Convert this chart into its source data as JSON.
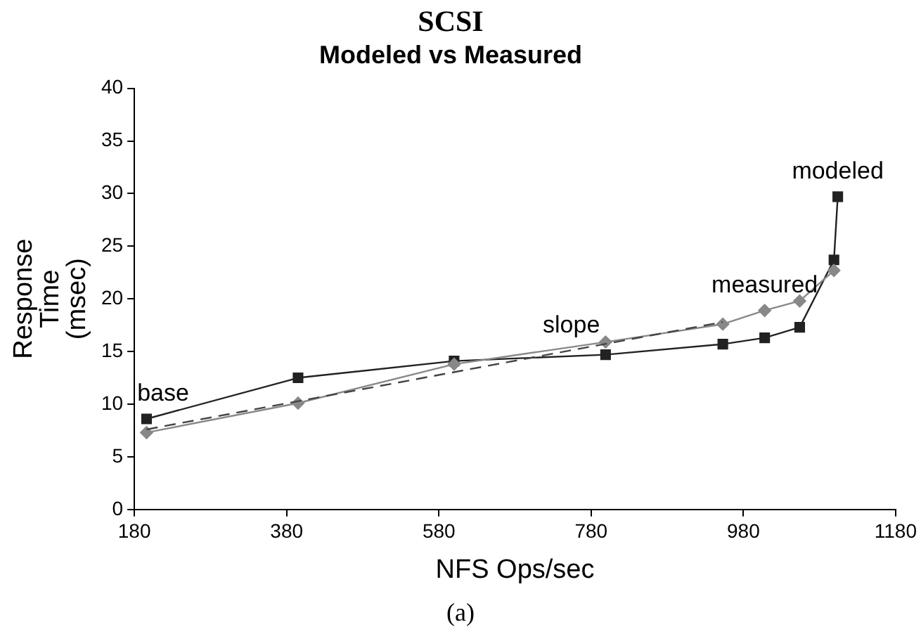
{
  "chart_data": {
    "type": "line",
    "title": "SCSI",
    "subtitle": "Modeled vs Measured",
    "xlabel": "NFS Ops/sec",
    "ylabel": "Response Time (msec)",
    "xlim": [
      180,
      1180
    ],
    "xticks": [
      180,
      380,
      580,
      780,
      980,
      1180
    ],
    "ylim": [
      0,
      40
    ],
    "yticks": [
      0,
      5,
      10,
      15,
      20,
      25,
      30,
      35,
      40
    ],
    "grid": false,
    "legend": false,
    "series": [
      {
        "color": "#222222",
        "marker": "square",
        "line_style": "solid",
        "x": [
          196,
          395,
          600,
          799,
          953,
          1008,
          1054,
          1099,
          1104
        ],
        "values": [
          8.6,
          12.5,
          14.1,
          14.7,
          15.7,
          16.3,
          17.3,
          23.7,
          29.7
        ]
      },
      {
        "color": "#888888",
        "marker": "diamond",
        "line_style": "solid",
        "x": [
          196,
          395,
          600,
          799,
          953,
          1008,
          1054,
          1099
        ],
        "values": [
          7.3,
          10.1,
          13.8,
          15.9,
          17.6,
          18.9,
          19.8,
          22.7
        ]
      },
      {
        "color": "#444444",
        "marker": "none",
        "line_style": "dashed",
        "x": [
          196,
          953
        ],
        "values": [
          7.6,
          17.8
        ]
      }
    ],
    "annotations": [
      {
        "text": "base",
        "x": 196,
        "y": 8.6
      },
      {
        "text": "slope",
        "x": 754,
        "y": 15.1
      },
      {
        "text": "measured",
        "x": 1008,
        "y": 18.9
      },
      {
        "text": "modeled",
        "x": 1104,
        "y": 29.7
      },
      "(a)"
    ]
  }
}
